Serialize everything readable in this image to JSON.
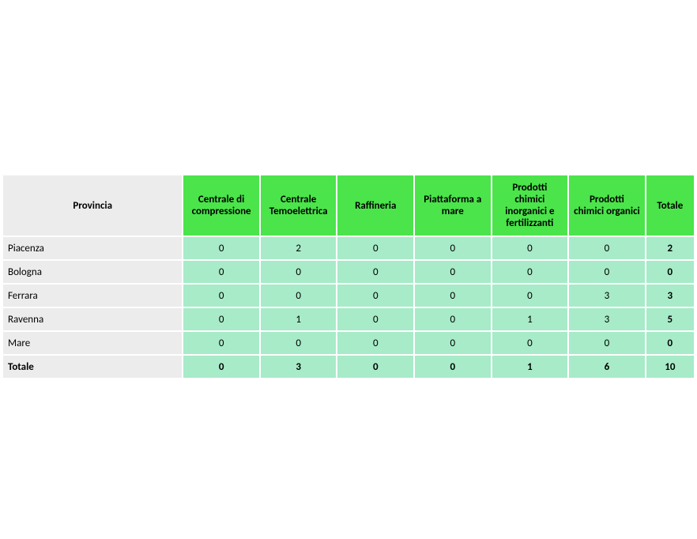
{
  "table": {
    "header_bg": "#4be44b",
    "cell_bg": "#a7ebc8",
    "rowhead_bg": "#ececec",
    "border_color": "#ffffff",
    "text_color": "#000000",
    "bold_total_column": true,
    "columns": [
      "Provincia",
      "Centrale di compressione",
      "Centrale Temoelettrica",
      "Raffineria",
      "Piattaforma a mare",
      "Prodotti chimici inorganici e fertilizzanti",
      "Prodotti chimici organici",
      "Totale"
    ],
    "rows": [
      {
        "label": "Piacenza",
        "values": [
          "0",
          "2",
          "0",
          "0",
          "0",
          "0",
          "2"
        ]
      },
      {
        "label": "Bologna",
        "values": [
          "0",
          "0",
          "0",
          "0",
          "0",
          "0",
          "0"
        ]
      },
      {
        "label": "Ferrara",
        "values": [
          "0",
          "0",
          "0",
          "0",
          "0",
          "3",
          "3"
        ]
      },
      {
        "label": "Ravenna",
        "values": [
          "0",
          "1",
          "0",
          "0",
          "1",
          "3",
          "5"
        ]
      },
      {
        "label": "Mare",
        "values": [
          "0",
          "0",
          "0",
          "0",
          "0",
          "0",
          "0"
        ]
      }
    ],
    "total_row": {
      "label": "Totale",
      "values": [
        "0",
        "3",
        "0",
        "0",
        "1",
        "6",
        "10"
      ]
    }
  }
}
